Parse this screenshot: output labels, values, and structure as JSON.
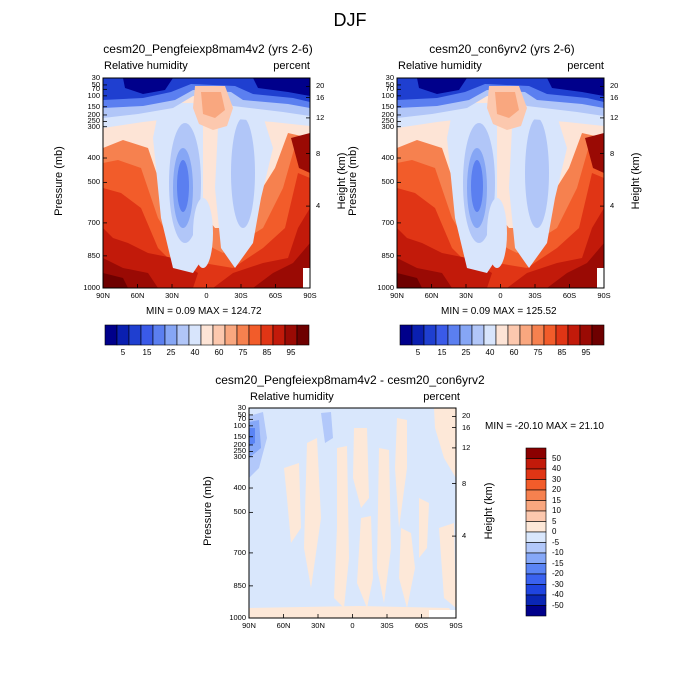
{
  "figure": {
    "title": "DJF",
    "colors": {
      "rh": [
        "#00008b",
        "#0a1fb0",
        "#1f3fd0",
        "#3a5ae8",
        "#5b7ff0",
        "#86a6f5",
        "#b1c6f8",
        "#d8e5fc",
        "#fde4d6",
        "#fcc8ae",
        "#f9a77f",
        "#f6814f",
        "#f25c2a",
        "#e03515",
        "#c21a0a",
        "#9a0a04",
        "#6e0000"
      ],
      "diff": [
        "#00008b",
        "#0a26b5",
        "#1f44e0",
        "#3a62f0",
        "#5a84f5",
        "#86a8f8",
        "#b2c8fa",
        "#d9e7fc",
        "#fde8d8",
        "#fcc8ae",
        "#f9a77f",
        "#f6814f",
        "#f25c2a",
        "#e03515",
        "#c21a0a",
        "#8b0000"
      ]
    }
  },
  "chart_data": [
    {
      "type": "heatmap",
      "id": "panel1",
      "title": "cesm20_Pengfeiexp8mam4v2 (yrs 2-6)",
      "left_string": "Relative humidity",
      "right_string": "percent",
      "ylabel": "Pressure (mb)",
      "ylabel_right": "Height (km)",
      "x_ticks": [
        "90N",
        "60N",
        "30N",
        "0",
        "30S",
        "60S",
        "90S"
      ],
      "y_ticks": [
        "30",
        "50",
        "70",
        "100",
        "150",
        "200",
        "250",
        "300",
        "400",
        "500",
        "700",
        "850",
        "1000"
      ],
      "y_ticks_right": [
        "20",
        "16",
        "12",
        "8",
        "4"
      ],
      "min_max": "MIN =   0.09   MAX = 124.72",
      "colorbar_labels": [
        "5",
        "15",
        "25",
        "40",
        "60",
        "75",
        "85",
        "95"
      ]
    },
    {
      "type": "heatmap",
      "id": "panel2",
      "title": "cesm20_con6yrv2 (yrs 2-6)",
      "left_string": "Relative humidity",
      "right_string": "percent",
      "ylabel": "Pressure (mb)",
      "ylabel_right": "Height (km)",
      "x_ticks": [
        "90N",
        "60N",
        "30N",
        "0",
        "30S",
        "60S",
        "90S"
      ],
      "y_ticks": [
        "30",
        "50",
        "70",
        "100",
        "150",
        "200",
        "250",
        "300",
        "400",
        "500",
        "700",
        "850",
        "1000"
      ],
      "y_ticks_right": [
        "20",
        "16",
        "12",
        "8",
        "4"
      ],
      "min_max": "MIN =   0.09   MAX = 125.52",
      "colorbar_labels": [
        "5",
        "15",
        "25",
        "40",
        "60",
        "75",
        "85",
        "95"
      ]
    },
    {
      "type": "heatmap",
      "id": "panel3",
      "title": "cesm20_Pengfeiexp8mam4v2 - cesm20_con6yrv2",
      "left_string": "Relative humidity",
      "right_string": "percent",
      "ylabel": "Pressure (mb)",
      "ylabel_right": "Height (km)",
      "x_ticks": [
        "90N",
        "60N",
        "30N",
        "0",
        "30S",
        "60S",
        "90S"
      ],
      "y_ticks": [
        "30",
        "50",
        "70",
        "100",
        "150",
        "200",
        "250",
        "300",
        "400",
        "500",
        "700",
        "850",
        "1000"
      ],
      "y_ticks_right": [
        "20",
        "16",
        "12",
        "8",
        "4"
      ],
      "min_max": "MIN = -20.10  MAX =  21.10",
      "colorbar_labels": [
        "50",
        "40",
        "30",
        "20",
        "15",
        "10",
        "5",
        "0",
        "-5",
        "-10",
        "-15",
        "-20",
        "-30",
        "-40",
        "-50"
      ]
    }
  ]
}
